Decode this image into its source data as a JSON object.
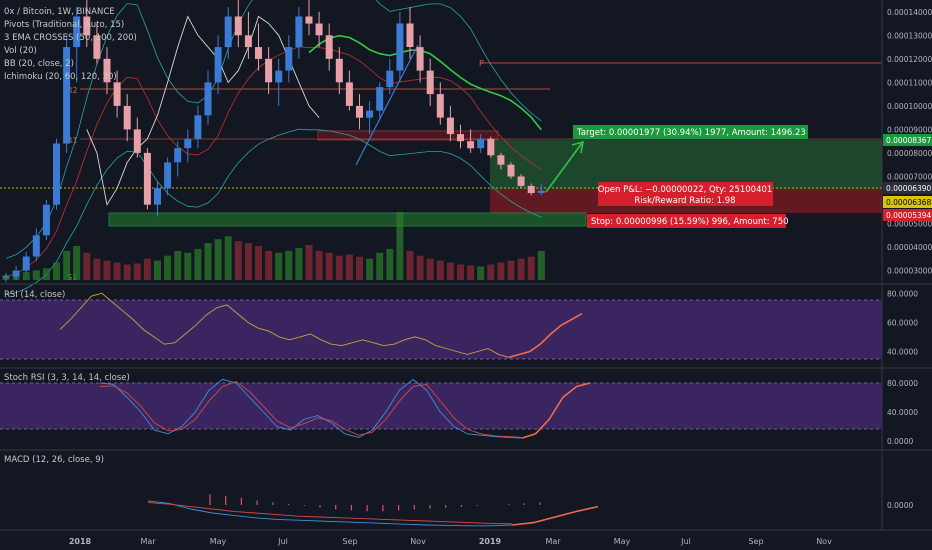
{
  "symbol_line": "0x / Bitcoin, 1W, BINANCE",
  "indicators": [
    "Pivots (Traditional, Auto, 15)",
    "3 EMA CROSSES (50, 100, 200)",
    "Vol (20)",
    "BB (20, close, 2)",
    "Ichimoku (20, 60, 120, 30)"
  ],
  "pivot_labels": [
    "R2",
    "R1",
    "P",
    "S1"
  ],
  "target_label": "Target: 0.00001977 (30.94%) 1977, Amount: 1496.23",
  "pnl_label_1": "Open P&L: −0.00000022, Qty: 25100401",
  "pnl_label_2": "Risk/Reward Ratio: 1.98",
  "stop_label": "Stop: 0.00000996 (15.59%) 996, Amount: 750",
  "price_badges": {
    "target": "0.00008367",
    "current": "0.00006390",
    "entry": "0.00006368",
    "stop": "0.00005394"
  },
  "panes": {
    "rsi": "RSI (14, close)",
    "stoch": "Stoch RSI (3, 3, 14, 14, close)",
    "macd": "MACD (12, 26, close, 9)"
  },
  "colors": {
    "background": "#131722",
    "up": "#3b7bd4",
    "down": "#e8a0a8",
    "target_zone": "#1f4d2e",
    "stop_zone": "#6b1a22",
    "label_green": "#1a9a3c",
    "label_red": "#d61f2c",
    "rsi_band": "#3a2560"
  },
  "chart_data": {
    "type": "candlestick",
    "y_axis_ticks": [
      "0.00014000",
      "0.00013000",
      "0.00012000",
      "0.00011000",
      "0.00010000",
      "0.00009000",
      "0.00008000",
      "0.00007000",
      "0.00006000",
      "0.00005000",
      "0.00004000",
      "0.00003000"
    ],
    "x_axis_ticks": [
      "2018",
      "Mar",
      "May",
      "Jul",
      "Sep",
      "Nov",
      "2019",
      "Mar",
      "May",
      "Jul",
      "Sep",
      "Nov"
    ],
    "rsi_ticks": [
      "80.0000",
      "60.0000",
      "40.0000"
    ],
    "stoch_ticks": [
      "80.0000",
      "40.0000",
      "0.0000"
    ],
    "macd_ticks": [
      "0.0000"
    ],
    "candles": [
      [
        2.7e-05,
        2.9e-05,
        2.5e-05,
        2.75e-05
      ],
      [
        2.75e-05,
        3.2e-05,
        2.6e-05,
        3e-05
      ],
      [
        3e-05,
        3.8e-05,
        2.9e-05,
        3.6e-05
      ],
      [
        3.6e-05,
        4.8e-05,
        3.4e-05,
        4.5e-05
      ],
      [
        4.5e-05,
        6e-05,
        4.3e-05,
        5.8e-05
      ],
      [
        5.8e-05,
        8.6e-05,
        5.6e-05,
        8.4e-05
      ],
      [
        8.4e-05,
        0.00013,
        8e-05,
        0.000125
      ],
      [
        0.000125,
        0.000142,
        0.00011,
        0.000138
      ],
      [
        0.000138,
        0.000145,
        0.000125,
        0.00013
      ],
      [
        0.00013,
        0.000135,
        0.000118,
        0.00012
      ],
      [
        0.00012,
        0.000125,
        0.000105,
        0.00011
      ],
      [
        0.00011,
        0.000115,
        9.5e-05,
        0.0001
      ],
      [
        0.0001,
        0.000105,
        8.5e-05,
        9e-05
      ],
      [
        9e-05,
        9.5e-05,
        7.8e-05,
        8e-05
      ],
      [
        8e-05,
        8.2e-05,
        5.6e-05,
        5.8e-05
      ],
      [
        5.8e-05,
        6.8e-05,
        5.3e-05,
        6.5e-05
      ],
      [
        6.5e-05,
        7.8e-05,
        6.2e-05,
        7.6e-05
      ],
      [
        7.6e-05,
        8.5e-05,
        7e-05,
        8.2e-05
      ],
      [
        8.2e-05,
        9e-05,
        7.6e-05,
        8.6e-05
      ],
      [
        8.6e-05,
        0.0001,
        8.2e-05,
        9.6e-05
      ],
      [
        9.6e-05,
        0.000115,
        9.2e-05,
        0.00011
      ],
      [
        0.00011,
        0.00013,
        0.000105,
        0.000125
      ],
      [
        0.000125,
        0.000142,
        0.00012,
        0.000138
      ],
      [
        0.000138,
        0.000145,
        0.000125,
        0.00013
      ],
      [
        0.00013,
        0.00014,
        0.00012,
        0.000125
      ],
      [
        0.000125,
        0.000135,
        0.000115,
        0.00012
      ],
      [
        0.00012,
        0.000125,
        0.000105,
        0.00011
      ],
      [
        0.00011,
        0.00012,
        0.0001,
        0.000115
      ],
      [
        0.000115,
        0.00013,
        0.00011,
        0.000125
      ],
      [
        0.000125,
        0.000142,
        0.00012,
        0.000138
      ],
      [
        0.000138,
        0.000145,
        0.00013,
        0.000135
      ],
      [
        0.000135,
        0.00014,
        0.000125,
        0.00013
      ],
      [
        0.00013,
        0.000135,
        0.000115,
        0.00012
      ],
      [
        0.00012,
        0.000125,
        0.000105,
        0.00011
      ],
      [
        0.00011,
        0.000115,
        9.8e-05,
        0.0001
      ],
      [
        0.0001,
        0.000105,
        9e-05,
        9.5e-05
      ],
      [
        9.5e-05,
        0.000102,
        8.8e-05,
        9.8e-05
      ],
      [
        9.8e-05,
        0.00011,
        9.5e-05,
        0.000108
      ],
      [
        0.000108,
        0.00012,
        0.000105,
        0.000115
      ],
      [
        0.000115,
        0.00014,
        0.00011,
        0.000135
      ],
      [
        0.000135,
        0.000142,
        0.00012,
        0.000125
      ],
      [
        0.000125,
        0.00013,
        0.00011,
        0.000115
      ],
      [
        0.000115,
        0.00012,
        0.0001,
        0.000105
      ],
      [
        0.000105,
        0.00011,
        9.2e-05,
        9.5e-05
      ],
      [
        9.5e-05,
        0.0001,
        8.5e-05,
        8.8e-05
      ],
      [
        8.8e-05,
        9.2e-05,
        8.2e-05,
        8.5e-05
      ],
      [
        8.5e-05,
        9e-05,
        8e-05,
        8.2e-05
      ],
      [
        8.2e-05,
        8.8e-05,
        8e-05,
        8.6e-05
      ],
      [
        8.6e-05,
        8.7e-05,
        7.8e-05,
        7.9e-05
      ],
      [
        7.9e-05,
        8e-05,
        7.3e-05,
        7.5e-05
      ],
      [
        7.5e-05,
        7.6e-05,
        6.9e-05,
        7e-05
      ],
      [
        7e-05,
        7.1e-05,
        6.5e-05,
        6.6e-05
      ],
      [
        6.6e-05,
        6.7e-05,
        6.2e-05,
        6.3e-05
      ],
      [
        6.3e-05,
        6.7e-05,
        6.2e-05,
        6.4e-05
      ]
    ],
    "volume": [
      5,
      6,
      8,
      10,
      12,
      18,
      30,
      35,
      28,
      22,
      20,
      18,
      16,
      17,
      22,
      20,
      25,
      30,
      28,
      32,
      38,
      42,
      45,
      40,
      38,
      35,
      30,
      28,
      30,
      33,
      36,
      30,
      28,
      25,
      26,
      24,
      22,
      28,
      32,
      70,
      30,
      25,
      22,
      20,
      18,
      16,
      15,
      14,
      16,
      18,
      20,
      22,
      24,
      30
    ],
    "rsi": [
      55,
      62,
      70,
      78,
      80,
      74,
      68,
      62,
      55,
      50,
      45,
      46,
      52,
      58,
      65,
      70,
      72,
      66,
      60,
      56,
      54,
      50,
      48,
      50,
      52,
      48,
      45,
      44,
      46,
      48,
      46,
      44,
      45,
      48,
      50,
      48,
      44,
      42,
      40,
      38,
      40,
      42,
      38,
      36,
      38,
      40,
      45,
      52,
      58,
      62,
      66
    ],
    "stoch_k": [
      80,
      78,
      60,
      40,
      15,
      10,
      20,
      40,
      70,
      85,
      80,
      60,
      40,
      20,
      15,
      30,
      35,
      25,
      10,
      5,
      15,
      40,
      70,
      85,
      70,
      40,
      20,
      10,
      8,
      6,
      5,
      4,
      10,
      30,
      60,
      75,
      80
    ],
    "stoch_d": [
      75,
      76,
      66,
      48,
      25,
      14,
      16,
      30,
      55,
      75,
      82,
      68,
      48,
      28,
      18,
      24,
      32,
      28,
      16,
      8,
      12,
      30,
      55,
      75,
      78,
      55,
      32,
      16,
      10,
      7,
      6,
      5,
      8,
      20,
      45,
      65,
      75
    ],
    "macd": [
      0.5,
      0.2,
      -0.5,
      -1.0,
      -1.3,
      -1.6,
      -1.8,
      -1.9,
      -2.0,
      -2.1,
      -2.2,
      -2.3,
      -2.4,
      -2.5,
      -2.55,
      -2.6,
      -2.6,
      -2.5,
      -2.2,
      -1.5,
      -0.8,
      -0.2
    ],
    "macd_signal": [
      0.3,
      0.1,
      -0.2,
      -0.5,
      -0.8,
      -1.0,
      -1.2,
      -1.4,
      -1.5,
      -1.6,
      -1.7,
      -1.8,
      -1.9,
      -2.0,
      -2.1,
      -2.2,
      -2.3,
      -2.35,
      -2.3,
      -2.0,
      -1.6,
      -1.1
    ],
    "macd_hist": [
      1.2,
      1.0,
      0.8,
      0.5,
      0.3,
      0.1,
      -0.1,
      -0.3,
      -0.5,
      -0.6,
      -0.7,
      -0.7,
      -0.6,
      -0.5,
      -0.4,
      -0.3,
      -0.2,
      -0.1,
      0.0,
      0.1,
      0.2,
      0.3
    ]
  }
}
